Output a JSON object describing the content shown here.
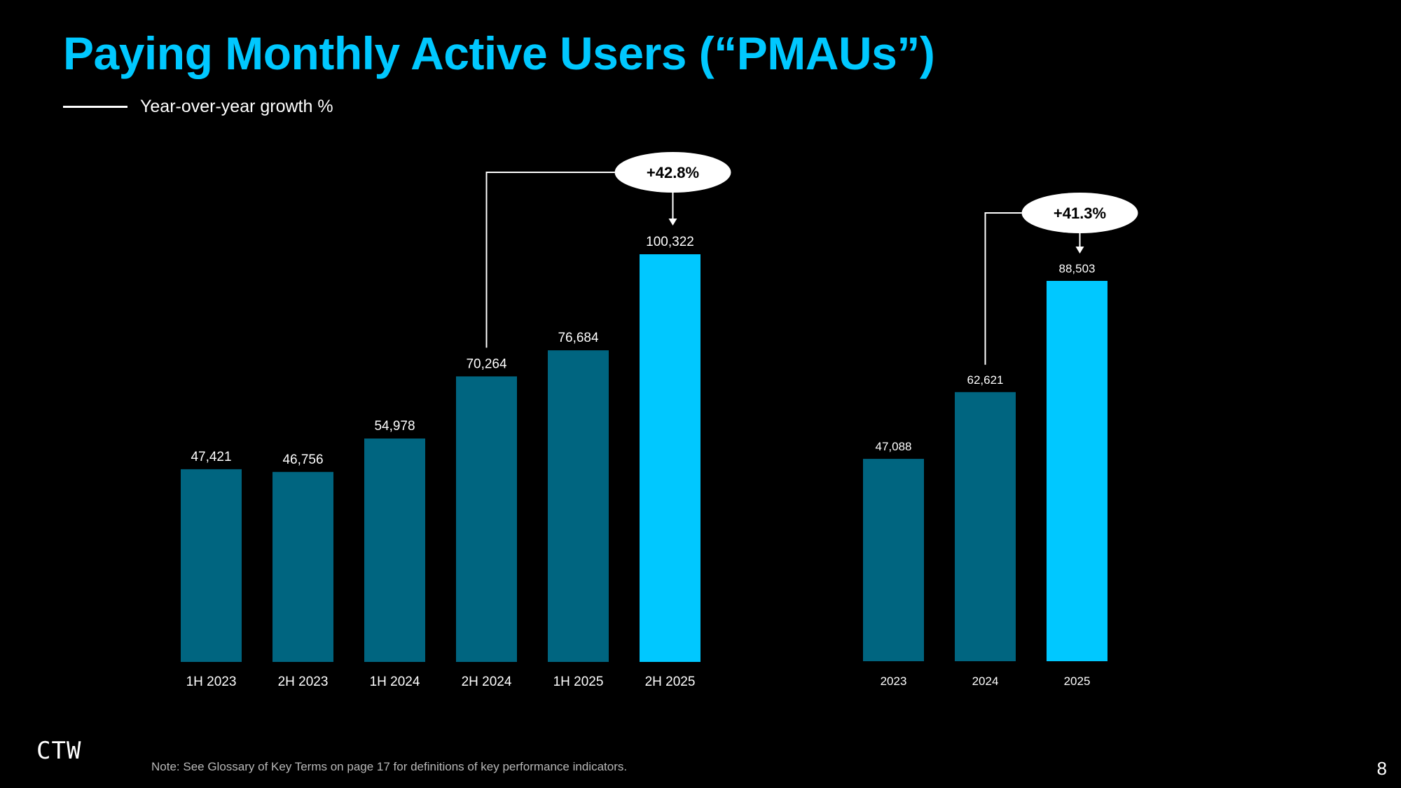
{
  "title": "Paying Monthly Active Users (“PMAUs”)",
  "legend": {
    "label": "Year-over-year growth %"
  },
  "colors": {
    "title": "#00c8ff",
    "bar": "#006580",
    "highlight": "#00c8ff",
    "background": "#000000"
  },
  "chart_data": [
    {
      "type": "bar",
      "name": "half-year",
      "categories": [
        "1H 2023",
        "2H 2023",
        "1H 2024",
        "2H 2024",
        "1H 2025",
        "2H 2025"
      ],
      "values": [
        47421,
        46756,
        54978,
        70264,
        76684,
        100322
      ],
      "labels": [
        "47,421",
        "46,756",
        "54,978",
        "70,264",
        "76,684",
        "100,322"
      ],
      "highlight_index": 5,
      "growth": {
        "from_index": 3,
        "to_index": 5,
        "label": "+42.8%"
      }
    },
    {
      "type": "bar",
      "name": "annual",
      "categories": [
        "2023",
        "2024",
        "2025"
      ],
      "values": [
        47088,
        62621,
        88503
      ],
      "labels": [
        "47,088",
        "62,621",
        "88,503"
      ],
      "highlight_index": 2,
      "growth": {
        "from_index": 1,
        "to_index": 2,
        "label": "+41.3%"
      }
    }
  ],
  "footer": {
    "logo": "CTW",
    "note": "Note: See Glossary of Key Terms on page 17 for definitions of key performance indicators.",
    "page_number": "8"
  }
}
